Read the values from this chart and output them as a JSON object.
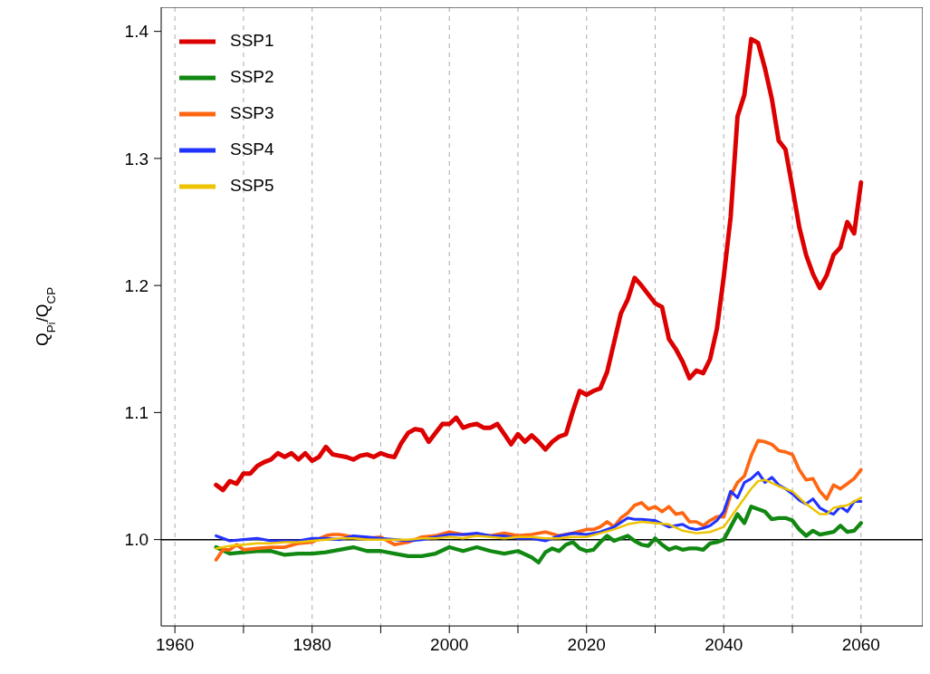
{
  "chart_data": {
    "type": "line",
    "ylabel": "Q$_{Pi}$/Q$_{CP}$",
    "xlim": [
      1958,
      2069
    ],
    "ylim": [
      0.932,
      1.419
    ],
    "xticks": [
      1960,
      {
        "value": 1970,
        "label": null
      },
      1980,
      {
        "value": 1990,
        "label": null
      },
      2000,
      {
        "value": 2010,
        "label": null
      },
      2020,
      {
        "value": 2030,
        "label": null
      },
      2040,
      {
        "value": 2050,
        "label": null
      },
      2060
    ],
    "yticks": [
      {
        "value": 1,
        "label": "1.0"
      },
      {
        "value": 1.1,
        "label": "1.1"
      },
      {
        "value": 1.2,
        "label": "1.2"
      },
      {
        "value": 1.3,
        "label": "1.3"
      },
      {
        "value": 1.4,
        "label": "1.4"
      }
    ],
    "grid": "x",
    "legend": "top left",
    "marker": "none",
    "line_style": "solid",
    "ref_lines": [
      {
        "axis": "y",
        "value": 1,
        "color": "#000000",
        "line_style": "solid"
      }
    ],
    "series": [
      {
        "name": "SSP1",
        "color": "#dd0000",
        "x": [
          1966,
          1967,
          1968,
          1969,
          1970,
          1971,
          1972,
          1973,
          1974,
          1975,
          1976,
          1977,
          1978,
          1979,
          1980,
          1981,
          1982,
          1983,
          1984,
          1985,
          1986,
          1987,
          1988,
          1989,
          1990,
          1991,
          1992,
          1993,
          1994,
          1995,
          1996,
          1997,
          1998,
          1999,
          2000,
          2001,
          2002,
          2003,
          2004,
          2005,
          2006,
          2007,
          2008,
          2009,
          2010,
          2011,
          2012,
          2013,
          2014,
          2015,
          2016,
          2017,
          2018,
          2019,
          2020,
          2021,
          2022,
          2023,
          2024,
          2025,
          2026,
          2027,
          2028,
          2029,
          2030,
          2031,
          2032,
          2033,
          2034,
          2035,
          2036,
          2037,
          2038,
          2039,
          2040,
          2041,
          2042,
          2043,
          2044,
          2045,
          2046,
          2047,
          2048,
          2049,
          2050,
          2051,
          2052,
          2053,
          2054,
          2055,
          2056,
          2057,
          2058,
          2059,
          2060
        ],
        "values": [
          1.043,
          1.039,
          1.046,
          1.044,
          1.052,
          1.052,
          1.058,
          1.061,
          1.063,
          1.068,
          1.065,
          1.068,
          1.063,
          1.068,
          1.062,
          1.065,
          1.073,
          1.067,
          1.066,
          1.065,
          1.063,
          1.066,
          1.067,
          1.065,
          1.068,
          1.066,
          1.065,
          1.076,
          1.084,
          1.087,
          1.086,
          1.077,
          1.084,
          1.091,
          1.091,
          1.096,
          1.088,
          1.09,
          1.091,
          1.088,
          1.088,
          1.091,
          1.083,
          1.075,
          1.083,
          1.077,
          1.082,
          1.077,
          1.071,
          1.077,
          1.081,
          1.083,
          1.101,
          1.117,
          1.114,
          1.117,
          1.119,
          1.132,
          1.155,
          1.178,
          1.189,
          1.206,
          1.2,
          1.193,
          1.186,
          1.183,
          1.158,
          1.15,
          1.14,
          1.127,
          1.133,
          1.131,
          1.142,
          1.166,
          1.207,
          1.254,
          1.333,
          1.35,
          1.394,
          1.391,
          1.371,
          1.347,
          1.314,
          1.307,
          1.277,
          1.246,
          1.224,
          1.209,
          1.198,
          1.208,
          1.224,
          1.23,
          1.25,
          1.241,
          1.281
        ]
      },
      {
        "name": "SSP2",
        "color": "#118811",
        "x": [
          1966,
          1968,
          1970,
          1972,
          1974,
          1976,
          1978,
          1980,
          1982,
          1984,
          1986,
          1988,
          1990,
          1992,
          1994,
          1996,
          1998,
          2000,
          2002,
          2004,
          2006,
          2008,
          2010,
          2012,
          2013,
          2014,
          2015,
          2016,
          2017,
          2018,
          2019,
          2020,
          2021,
          2022,
          2023,
          2024,
          2025,
          2026,
          2027,
          2028,
          2029,
          2030,
          2031,
          2032,
          2033,
          2034,
          2035,
          2036,
          2037,
          2038,
          2039,
          2040,
          2041,
          2042,
          2043,
          2044,
          2045,
          2046,
          2047,
          2048,
          2049,
          2050,
          2051,
          2052,
          2053,
          2054,
          2055,
          2056,
          2057,
          2058,
          2059,
          2060
        ],
        "values": [
          0.994,
          0.989,
          0.99,
          0.991,
          0.991,
          0.988,
          0.989,
          0.989,
          0.99,
          0.992,
          0.994,
          0.991,
          0.991,
          0.989,
          0.987,
          0.987,
          0.989,
          0.994,
          0.991,
          0.994,
          0.991,
          0.989,
          0.991,
          0.986,
          0.982,
          0.99,
          0.993,
          0.991,
          0.996,
          0.998,
          0.993,
          0.991,
          0.992,
          0.998,
          1.003,
          0.999,
          1.001,
          1.003,
          0.999,
          0.996,
          0.995,
          1.001,
          0.996,
          0.992,
          0.994,
          0.992,
          0.993,
          0.993,
          0.992,
          0.997,
          0.998,
          1.0,
          1.01,
          1.02,
          1.013,
          1.026,
          1.024,
          1.022,
          1.016,
          1.017,
          1.017,
          1.015,
          1.008,
          1.003,
          1.007,
          1.004,
          1.005,
          1.006,
          1.011,
          1.006,
          1.007,
          1.013
        ]
      },
      {
        "name": "SSP3",
        "color": "#ff6611",
        "x": [
          1966,
          1967,
          1968,
          1969,
          1970,
          1972,
          1974,
          1976,
          1978,
          1980,
          1982,
          1983,
          1984,
          1986,
          1988,
          1990,
          1992,
          1994,
          1996,
          1998,
          2000,
          2002,
          2004,
          2006,
          2008,
          2010,
          2012,
          2014,
          2016,
          2018,
          2020,
          2021,
          2022,
          2023,
          2024,
          2025,
          2026,
          2027,
          2028,
          2029,
          2030,
          2031,
          2032,
          2033,
          2034,
          2035,
          2036,
          2037,
          2038,
          2039,
          2040,
          2041,
          2042,
          2043,
          2044,
          2045,
          2046,
          2047,
          2048,
          2049,
          2050,
          2051,
          2052,
          2053,
          2054,
          2055,
          2056,
          2057,
          2058,
          2059,
          2060
        ],
        "values": [
          0.984,
          0.992,
          0.992,
          0.996,
          0.992,
          0.993,
          0.994,
          0.994,
          0.997,
          0.998,
          1.003,
          1.004,
          1.004,
          1.002,
          1.001,
          1.002,
          0.996,
          0.998,
          1.002,
          1.003,
          1.006,
          1.004,
          1.004,
          1.003,
          1.005,
          1.003,
          1.004,
          1.006,
          1.003,
          1.005,
          1.008,
          1.008,
          1.01,
          1.014,
          1.01,
          1.017,
          1.021,
          1.027,
          1.029,
          1.024,
          1.026,
          1.022,
          1.026,
          1.02,
          1.021,
          1.014,
          1.014,
          1.011,
          1.015,
          1.018,
          1.018,
          1.035,
          1.045,
          1.05,
          1.066,
          1.078,
          1.077,
          1.075,
          1.07,
          1.069,
          1.067,
          1.055,
          1.047,
          1.048,
          1.038,
          1.032,
          1.043,
          1.04,
          1.044,
          1.048,
          1.055
        ]
      },
      {
        "name": "SSP4",
        "color": "#2233ff",
        "x": [
          1966,
          1968,
          1970,
          1972,
          1974,
          1976,
          1978,
          1980,
          1982,
          1984,
          1986,
          1988,
          1990,
          1992,
          1994,
          1996,
          1998,
          2000,
          2002,
          2004,
          2006,
          2008,
          2010,
          2012,
          2014,
          2016,
          2018,
          2020,
          2022,
          2024,
          2026,
          2027,
          2028,
          2030,
          2032,
          2034,
          2035,
          2036,
          2037,
          2038,
          2039,
          2040,
          2041,
          2042,
          2043,
          2044,
          2045,
          2046,
          2047,
          2048,
          2049,
          2050,
          2051,
          2052,
          2053,
          2054,
          2055,
          2056,
          2057,
          2058,
          2059,
          2060
        ],
        "values": [
          1.003,
          0.999,
          1.0,
          1.001,
          0.999,
          0.999,
          0.999,
          1.001,
          1.001,
          1.0,
          1.003,
          1.002,
          1.001,
          1.0,
          0.999,
          1.0,
          1.002,
          1.004,
          1.004,
          1.005,
          1.003,
          1.003,
          1.001,
          1.001,
          0.999,
          1.003,
          1.005,
          1.004,
          1.006,
          1.01,
          1.017,
          1.016,
          1.016,
          1.015,
          1.01,
          1.012,
          1.009,
          1.008,
          1.009,
          1.011,
          1.015,
          1.022,
          1.038,
          1.033,
          1.045,
          1.048,
          1.053,
          1.045,
          1.049,
          1.043,
          1.04,
          1.036,
          1.031,
          1.028,
          1.032,
          1.025,
          1.022,
          1.02,
          1.026,
          1.022,
          1.03,
          1.03
        ]
      },
      {
        "name": "SSP5",
        "color": "#eec300",
        "x": [
          1966,
          1968,
          1970,
          1972,
          1974,
          1976,
          1978,
          1980,
          1982,
          1984,
          1986,
          1988,
          1990,
          1992,
          1994,
          1996,
          1998,
          2000,
          2002,
          2004,
          2006,
          2008,
          2010,
          2012,
          2014,
          2016,
          2018,
          2020,
          2022,
          2024,
          2026,
          2028,
          2030,
          2032,
          2034,
          2036,
          2038,
          2040,
          2042,
          2044,
          2045,
          2046,
          2048,
          2050,
          2052,
          2054,
          2055,
          2056,
          2058,
          2060
        ],
        "values": [
          0.993,
          0.995,
          0.996,
          0.997,
          0.997,
          0.998,
          0.998,
          0.999,
          1.0,
          1.001,
          1.001,
          1.0,
          1.0,
          1.0,
          1.0,
          1.001,
          1.001,
          1.002,
          1.001,
          1.003,
          1.002,
          1.001,
          1.002,
          1.002,
          1.001,
          1.001,
          1.002,
          1.002,
          1.005,
          1.008,
          1.012,
          1.014,
          1.013,
          1.012,
          1.007,
          1.005,
          1.006,
          1.01,
          1.025,
          1.04,
          1.046,
          1.047,
          1.042,
          1.038,
          1.028,
          1.02,
          1.02,
          1.025,
          1.027,
          1.033
        ]
      }
    ]
  }
}
